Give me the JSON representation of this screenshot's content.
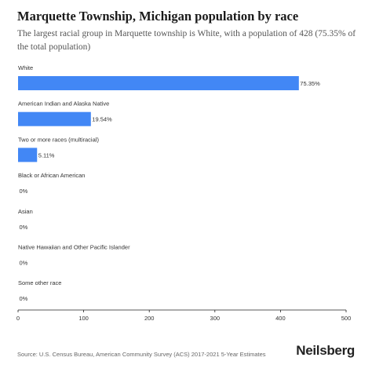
{
  "page": {
    "title": "Marquette Township, Michigan population by race",
    "subtitle": "The largest racial group in Marquette township is White, with a population of 428 (75.35% of the total population)",
    "source": "Source: U.S. Census Bureau, American Community Survey (ACS) 2017-2021 5-Year Estimates",
    "brand": "Neilsberg"
  },
  "chart_data": {
    "type": "bar",
    "orientation": "horizontal",
    "title": "Marquette Township, Michigan population by race",
    "categories": [
      "White",
      "American Indian and Alaska Native",
      "Two or more races (multiracial)",
      "Black or African American",
      "Asian",
      "Native Hawaiian and Other Pacific Islander",
      "Some other race"
    ],
    "values": [
      428,
      111,
      29,
      0,
      0,
      0,
      0
    ],
    "labels": [
      "75.35%",
      "19.54%",
      "5.11%",
      "0%",
      "0%",
      "0%",
      "0%"
    ],
    "xlim": [
      0,
      500
    ],
    "xticks": [
      0,
      100,
      200,
      300,
      400,
      500
    ],
    "bar_color": "#4287f5",
    "grid": false,
    "legend": "none"
  }
}
